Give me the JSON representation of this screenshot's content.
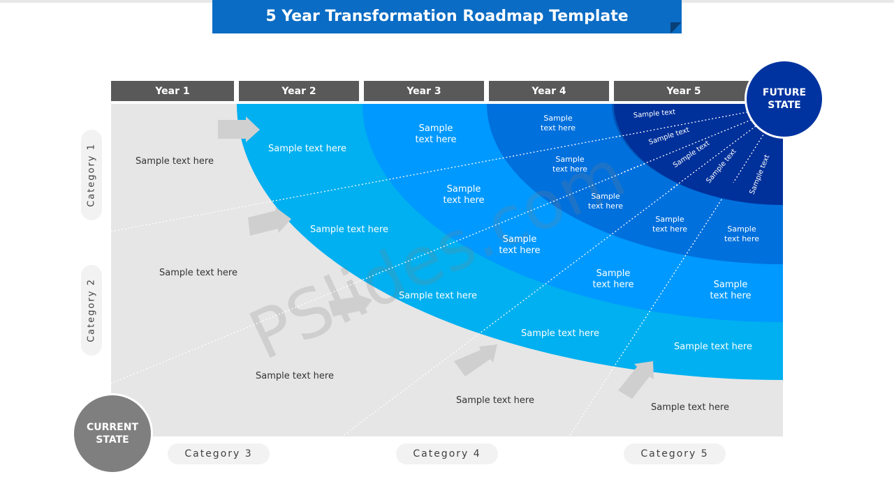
{
  "title": "5 Year Transformation Roadmap Template",
  "years": [
    "Year 1",
    "Year 2",
    "Year 3",
    "Year 4",
    "Year 5"
  ],
  "categories_left": [
    "Category 1",
    "Category 2"
  ],
  "categories_bottom": [
    "Category 3",
    "Category 4",
    "Category 5"
  ],
  "current_state": "CURRENT STATE",
  "future_state": "FUTURE STATE",
  "watermark": "PSlides.com",
  "colors": {
    "title_bar": "#0a6cc4",
    "year_tab": "#595959",
    "background_panel": "#e6e6e6",
    "band_1": "#00b0f0",
    "band_2": "#0099ff",
    "band_3": "#0070dd",
    "band_4": "#0056b8",
    "band_5": "#00309a",
    "current_state_circle": "#7f7f7f",
    "future_state_circle": "#0033a0"
  },
  "labels": {
    "grey_1": "Sample text here",
    "grey_2": "Sample text here",
    "grey_3": "Sample text here",
    "grey_4": "Sample text here",
    "grey_5": "Sample text here",
    "b1_1": "Sample text here",
    "b1_2": "Sample text here",
    "b1_3": "Sample text here",
    "b1_4": "Sample text here",
    "b1_5": "Sample text here",
    "b2_1a": "Sample",
    "b2_1b": "text here",
    "b2_2a": "Sample",
    "b2_2b": "text here",
    "b2_3a": "Sample",
    "b2_3b": "text here",
    "b2_4a": "Sample",
    "b2_4b": "text here",
    "b2_5a": "Sample",
    "b2_5b": "text here",
    "b3_1a": "Sample",
    "b3_1b": "text here",
    "b3_2a": "Sample",
    "b3_2b": "text here",
    "b3_3a": "Sample",
    "b3_3b": "text here",
    "b3_4a": "Sample",
    "b3_4b": "text here",
    "b3_5a": "Sample",
    "b3_5b": "text here",
    "b4_1": "Sample text",
    "b4_2": "Sample text",
    "b4_3": "Sample text",
    "b4_4": "Sample text",
    "b4_5": "Sample text"
  }
}
